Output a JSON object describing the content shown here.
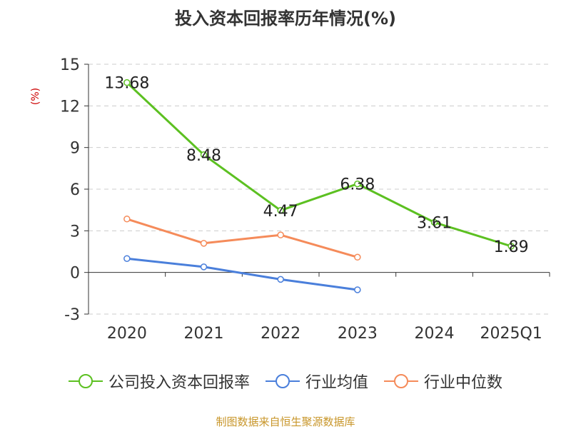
{
  "title": "投入资本回报率历年情况(%)",
  "source": "制图数据来自恒生聚源数据库",
  "chart_data": {
    "type": "line",
    "title": "投入资本回报率历年情况(%)",
    "ylabel": "(%)",
    "xlabel": "",
    "categories": [
      "2020",
      "2021",
      "2022",
      "2023",
      "2024",
      "2025Q1"
    ],
    "ylim": [
      -3,
      15
    ],
    "yticks": [
      -3,
      0,
      3,
      6,
      9,
      12,
      15
    ],
    "grid": true,
    "legend_position": "bottom",
    "series": [
      {
        "name": "公司投入资本回报率",
        "color": "#5cc021",
        "values": [
          13.68,
          8.48,
          4.47,
          6.38,
          3.61,
          1.89
        ],
        "labels": [
          "13.68",
          "8.48",
          "4.47",
          "6.38",
          "3.61",
          "1.89"
        ]
      },
      {
        "name": "行业均值",
        "color": "#4a7fdb",
        "values": [
          1.0,
          0.4,
          -0.5,
          -1.25,
          null,
          null
        ]
      },
      {
        "name": "行业中位数",
        "color": "#f58b5a",
        "values": [
          3.85,
          2.1,
          2.7,
          1.1,
          null,
          null
        ]
      }
    ]
  }
}
